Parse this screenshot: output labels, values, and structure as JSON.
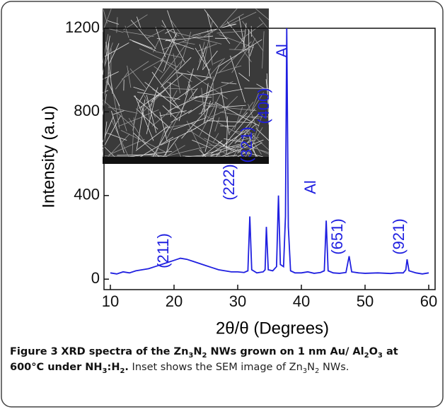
{
  "chart_data": {
    "type": "line",
    "xlabel": "2θ/θ (Degrees)",
    "ylabel": "Intensity (a.u)",
    "annotations": [
      "(211)",
      "(222)",
      "(321)",
      "(400)",
      "Al",
      "Al",
      "(651)",
      "(921)"
    ],
    "xlim": [
      9,
      61
    ],
    "xticks": [
      10,
      20,
      30,
      40,
      50,
      60
    ],
    "ylim": [
      -50,
      1200
    ],
    "yticks": [
      0,
      400,
      800,
      1200
    ],
    "x": [
      10,
      11,
      12,
      13,
      14,
      15,
      16,
      17,
      18,
      19,
      20,
      20.5,
      21,
      22,
      23,
      24,
      25,
      26,
      27,
      28,
      29,
      30,
      31,
      31.6,
      31.9,
      32.2,
      33,
      34,
      34.3,
      34.5,
      34.8,
      35.5,
      36.1,
      36.4,
      36.7,
      37.2,
      37.5,
      37.7,
      37.95,
      38.3,
      39,
      40,
      41,
      42,
      43,
      43.6,
      43.9,
      44.2,
      45,
      46,
      47,
      47.5,
      47.9,
      49,
      50,
      52,
      54,
      55,
      56,
      56.4,
      56.6,
      56.9,
      58,
      59,
      60
    ],
    "series": [
      {
        "color": "#1f1fe0",
        "values": [
          30,
          25,
          35,
          30,
          40,
          45,
          50,
          60,
          70,
          80,
          90,
          95,
          100,
          95,
          85,
          75,
          65,
          55,
          45,
          40,
          35,
          35,
          32,
          40,
          300,
          45,
          30,
          35,
          45,
          250,
          45,
          40,
          60,
          400,
          70,
          60,
          300,
          1200,
          250,
          40,
          30,
          30,
          35,
          28,
          32,
          40,
          280,
          40,
          30,
          28,
          32,
          110,
          35,
          30,
          28,
          30,
          27,
          30,
          30,
          45,
          95,
          40,
          30,
          25,
          30
        ]
      }
    ]
  },
  "caption": {
    "label": "Figure 3",
    "bold": [
      "XRD spectra of the Zn",
      "3",
      "N",
      "2",
      " NWs grown on 1 nm Au/ Al",
      "2",
      "O",
      "3",
      " at 600°C under NH",
      "3",
      ":H",
      "2",
      "."
    ],
    "normal": [
      " Inset shows the SEM image of Zn",
      "3",
      "N",
      "2",
      " NWs."
    ]
  }
}
